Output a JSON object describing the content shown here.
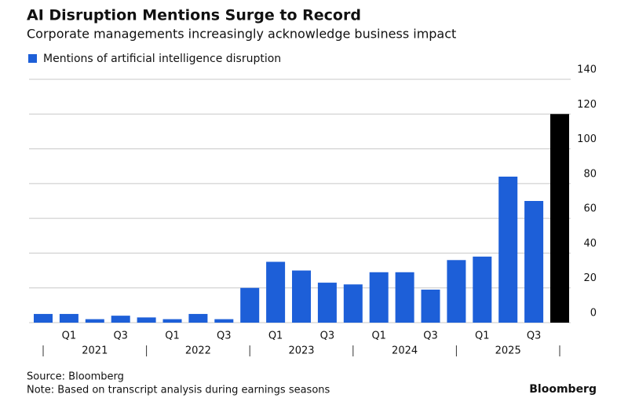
{
  "chart_data": {
    "type": "bar",
    "title": "AI Disruption Mentions Surge to Record",
    "subtitle": "Corporate managements increasingly acknowledge business impact",
    "series": [
      {
        "name": "Mentions of artificial intelligence disruption",
        "color": "#1d5fd8",
        "values": [
          5,
          5,
          2,
          4,
          3,
          2,
          5,
          2,
          20,
          35,
          30,
          23,
          22,
          29,
          29,
          19,
          36,
          38,
          84,
          70,
          120
        ]
      }
    ],
    "bar_colors": [
      "#1d5fd8",
      "#1d5fd8",
      "#1d5fd8",
      "#1d5fd8",
      "#1d5fd8",
      "#1d5fd8",
      "#1d5fd8",
      "#1d5fd8",
      "#1d5fd8",
      "#1d5fd8",
      "#1d5fd8",
      "#1d5fd8",
      "#1d5fd8",
      "#1d5fd8",
      "#1d5fd8",
      "#1d5fd8",
      "#1d5fd8",
      "#1d5fd8",
      "#1d5fd8",
      "#1d5fd8",
      "#000000"
    ],
    "categories": [
      null,
      "Q1",
      null,
      "Q3",
      null,
      "Q1",
      null,
      "Q3",
      null,
      "Q1",
      null,
      "Q3",
      null,
      "Q1",
      null,
      "Q3",
      null,
      "Q1",
      null,
      "Q3",
      null
    ],
    "years": [
      "2021",
      "2022",
      "2023",
      "2024",
      "2025"
    ],
    "ylim": [
      0,
      140
    ],
    "yticks": [
      0,
      20,
      40,
      60,
      80,
      100,
      120,
      140
    ],
    "grid": true,
    "source": "Source: Bloomberg",
    "note": "Note: Based on transcript analysis during earnings seasons",
    "brand": "Bloomberg"
  }
}
